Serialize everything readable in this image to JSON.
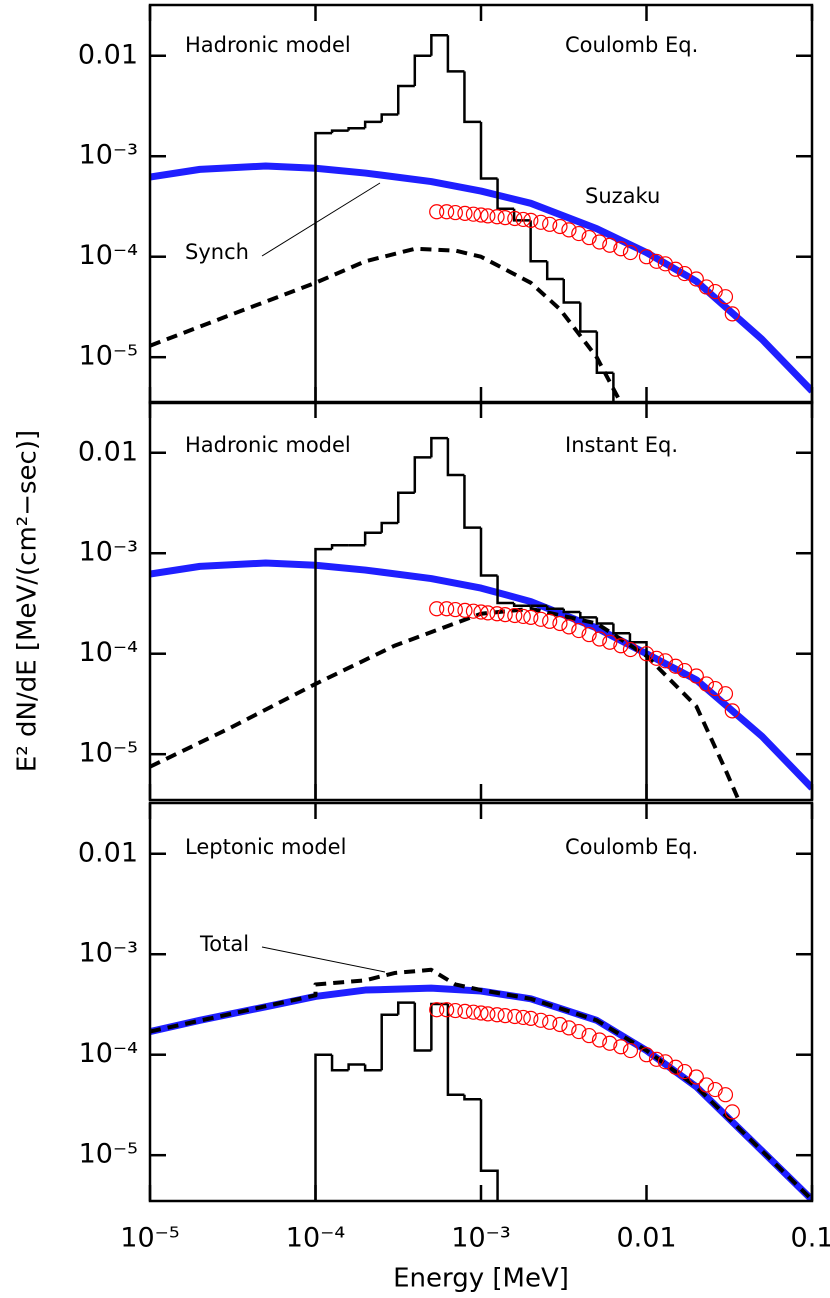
{
  "chart_data": [
    {
      "type": "line",
      "log_x": true,
      "log_y": true,
      "xlim": [
        1e-05,
        0.1
      ],
      "ylim": [
        3.5e-06,
        0.032
      ],
      "xticks": [
        1e-05,
        0.0001,
        0.001,
        0.01,
        0.1
      ],
      "yticks": [
        0.01,
        {
          "value": 0.001,
          "label": "10⁻³"
        },
        {
          "value": 0.0001,
          "label": "10⁻⁴"
        },
        {
          "value": 1e-05,
          "label": "10⁻⁵"
        }
      ],
      "annotations": [
        "Hadronic model",
        "Coulomb Eq.",
        "Suzaku",
        "Synch"
      ],
      "series": [
        {
          "type": "line",
          "color": "#1f1fff",
          "x": [
            1e-05,
            2e-05,
            5e-05,
            0.0001,
            0.0002,
            0.0005,
            0.001,
            0.002,
            0.005,
            0.01,
            0.02,
            0.05,
            0.1
          ],
          "values": [
            0.00062,
            0.00074,
            0.0008,
            0.00076,
            0.00068,
            0.00056,
            0.00045,
            0.00034,
            0.00019,
            0.00011,
            5.7e-05,
            1.5e-05,
            4.6e-06
          ]
        },
        {
          "type": "line",
          "dashed": true,
          "color": "#000000",
          "x": [
            1e-05,
            3e-05,
            0.0001,
            0.0002,
            0.0004,
            0.0007,
            0.001,
            0.002,
            0.003,
            0.005,
            0.007
          ],
          "values": [
            1.3e-05,
            2.6e-05,
            5.5e-05,
            9e-05,
            0.00012,
            0.000115,
            0.0001,
            5.5e-05,
            3e-05,
            1e-05,
            3.5e-06
          ]
        },
        {
          "type": "step",
          "color": "#000000",
          "bins": [
            0.0001,
            0.0001259,
            0.0001585,
            0.0001995,
            0.0002512,
            0.0003162,
            0.0003981,
            0.0005012,
            0.000631,
            0.0007943,
            0.001,
            0.001259,
            0.001585,
            0.001995,
            0.002512,
            0.003162,
            0.003981,
            0.005012,
            0.00631,
            0.007943,
            0.01
          ],
          "values": [
            0.0017,
            0.0018,
            0.0019,
            0.0022,
            0.0026,
            0.005,
            0.01,
            0.016,
            0.007,
            0.0022,
            0.0006,
            0.0003,
            0.00023,
            9e-05,
            6e-05,
            3.5e-05,
            1.8e-05,
            7e-06,
            3e-06,
            2e-06
          ]
        },
        {
          "type": "scatter",
          "color": "#ff0000",
          "x": [
            0.00054,
            0.00062,
            0.0007,
            0.0008,
            0.0009,
            0.001,
            0.0011,
            0.00125,
            0.0014,
            0.0016,
            0.0018,
            0.002,
            0.0023,
            0.0026,
            0.003,
            0.0034,
            0.0039,
            0.0045,
            0.0052,
            0.006,
            0.007,
            0.008,
            0.01,
            0.0115,
            0.013,
            0.015,
            0.017,
            0.02,
            0.023,
            0.026,
            0.03,
            0.033
          ],
          "values": [
            0.00028,
            0.00028,
            0.000275,
            0.00027,
            0.000265,
            0.00026,
            0.000255,
            0.00025,
            0.000245,
            0.00024,
            0.000235,
            0.00023,
            0.00022,
            0.00021,
            0.0002,
            0.000185,
            0.00017,
            0.000155,
            0.00014,
            0.00013,
            0.00012,
            0.00011,
            0.0001,
            9e-05,
            8.5e-05,
            7.5e-05,
            6.8e-05,
            6e-05,
            5e-05,
            4.5e-05,
            4e-05,
            2.7e-05
          ]
        }
      ]
    },
    {
      "type": "line",
      "log_x": true,
      "log_y": true,
      "xlim": [
        1e-05,
        0.1
      ],
      "ylim": [
        3.5e-06,
        0.032
      ],
      "xticks": [
        1e-05,
        0.0001,
        0.001,
        0.01,
        0.1
      ],
      "yticks": [
        0.01,
        {
          "value": 0.001,
          "label": "10⁻³"
        },
        {
          "value": 0.0001,
          "label": "10⁻⁴"
        },
        {
          "value": 1e-05,
          "label": "10⁻⁵"
        }
      ],
      "ylabel": "E² dN/dE [MeV/(cm²−sec)]",
      "annotations": [
        "Hadronic model",
        "Instant Eq."
      ],
      "series": [
        {
          "type": "line",
          "color": "#1f1fff",
          "x": [
            1e-05,
            2e-05,
            5e-05,
            0.0001,
            0.0002,
            0.0005,
            0.001,
            0.002,
            0.005,
            0.01,
            0.02,
            0.05,
            0.1
          ],
          "values": [
            0.00062,
            0.00074,
            0.0008,
            0.00076,
            0.00068,
            0.00056,
            0.00045,
            0.00033,
            0.00018,
            0.0001,
            5.5e-05,
            1.5e-05,
            4.6e-06
          ]
        },
        {
          "type": "line",
          "dashed": true,
          "color": "#000000",
          "x": [
            1e-05,
            3e-05,
            0.0001,
            0.0003,
            0.001,
            0.002,
            0.005,
            0.01,
            0.02,
            0.03,
            0.036
          ],
          "values": [
            7.5e-06,
            1.8e-05,
            5e-05,
            0.00012,
            0.00025,
            0.00028,
            0.0002,
            9.5e-05,
            3e-05,
            7e-06,
            3.5e-06
          ]
        },
        {
          "type": "step",
          "color": "#000000",
          "bins": [
            0.0001,
            0.0001259,
            0.0001585,
            0.0001995,
            0.0002512,
            0.0003162,
            0.0003981,
            0.0005012,
            0.000631,
            0.0007943,
            0.001,
            0.001259,
            0.001585,
            0.001995,
            0.002512,
            0.003162,
            0.003981,
            0.005012,
            0.00631,
            0.007943,
            0.01
          ],
          "values": [
            0.0011,
            0.0012,
            0.0012,
            0.0016,
            0.002,
            0.004,
            0.009,
            0.014,
            0.006,
            0.0018,
            0.0006,
            0.00032,
            0.0003,
            0.0003,
            0.00028,
            0.00026,
            0.00023,
            0.0002,
            0.00016,
            0.00013
          ]
        },
        {
          "type": "scatter",
          "color": "#ff0000",
          "x": [
            0.00054,
            0.00062,
            0.0007,
            0.0008,
            0.0009,
            0.001,
            0.0011,
            0.00125,
            0.0014,
            0.0016,
            0.0018,
            0.002,
            0.0023,
            0.0026,
            0.003,
            0.0034,
            0.0039,
            0.0045,
            0.0052,
            0.006,
            0.007,
            0.008,
            0.01,
            0.0115,
            0.013,
            0.015,
            0.017,
            0.02,
            0.023,
            0.026,
            0.03,
            0.033
          ],
          "values": [
            0.00028,
            0.00028,
            0.000275,
            0.00027,
            0.000265,
            0.00026,
            0.000255,
            0.00025,
            0.000245,
            0.00024,
            0.000235,
            0.00023,
            0.00022,
            0.00021,
            0.0002,
            0.000185,
            0.00017,
            0.000155,
            0.00014,
            0.00013,
            0.00012,
            0.00011,
            0.0001,
            9e-05,
            8.5e-05,
            7.5e-05,
            6.8e-05,
            6e-05,
            5e-05,
            4.5e-05,
            4e-05,
            2.7e-05
          ]
        }
      ]
    },
    {
      "type": "line",
      "log_x": true,
      "log_y": true,
      "xlim": [
        1e-05,
        0.1
      ],
      "ylim": [
        3.5e-06,
        0.032
      ],
      "xticks": [
        {
          "value": 1e-05,
          "label": "10⁻⁵"
        },
        {
          "value": 0.0001,
          "label": "10⁻⁴"
        },
        {
          "value": 0.001,
          "label": "10⁻³"
        },
        0.01,
        0.1
      ],
      "yticks": [
        0.01,
        {
          "value": 0.001,
          "label": "10⁻³"
        },
        {
          "value": 0.0001,
          "label": "10⁻⁴"
        },
        {
          "value": 1e-05,
          "label": "10⁻⁵"
        }
      ],
      "xlabel": "Energy [MeV]",
      "annotations": [
        "Leptonic model",
        "Coulomb Eq.",
        "Total"
      ],
      "series": [
        {
          "type": "line",
          "color": "#1f1fff",
          "x": [
            1e-05,
            2e-05,
            5e-05,
            0.0001,
            0.0002,
            0.0005,
            0.001,
            0.002,
            0.005,
            0.01,
            0.02,
            0.05,
            0.1
          ],
          "values": [
            0.00017,
            0.00022,
            0.0003,
            0.00038,
            0.00044,
            0.00046,
            0.00043,
            0.00036,
            0.00022,
            0.00011,
            4.8e-05,
            1.1e-05,
            3.6e-06
          ]
        },
        {
          "type": "line",
          "dashed": true,
          "color": "#000000",
          "x": [
            1e-05,
            0.0001,
            0.0001,
            0.0002,
            0.0003,
            0.0005,
            0.0007,
            0.001,
            0.002,
            0.005,
            0.01,
            0.02,
            0.05,
            0.1
          ],
          "values": [
            0.00017,
            0.00039,
            0.0005,
            0.00055,
            0.00065,
            0.0007,
            0.0005,
            0.00044,
            0.00036,
            0.00022,
            0.00011,
            4.8e-05,
            1.1e-05,
            3.6e-06
          ]
        },
        {
          "type": "step",
          "color": "#000000",
          "bins": [
            0.0001,
            0.0001259,
            0.0001585,
            0.0001995,
            0.0002512,
            0.0003162,
            0.0003981,
            0.0005012,
            0.000631,
            0.0007943,
            0.001,
            0.001259
          ],
          "values": [
            0.0001,
            7e-05,
            8e-05,
            7e-05,
            0.00025,
            0.00033,
            0.00011,
            0.00032,
            4e-05,
            3.6e-05,
            7e-06
          ]
        },
        {
          "type": "scatter",
          "color": "#ff0000",
          "x": [
            0.00054,
            0.00062,
            0.0007,
            0.0008,
            0.0009,
            0.001,
            0.0011,
            0.00125,
            0.0014,
            0.0016,
            0.0018,
            0.002,
            0.0023,
            0.0026,
            0.003,
            0.0034,
            0.0039,
            0.0045,
            0.0052,
            0.006,
            0.007,
            0.008,
            0.01,
            0.0115,
            0.013,
            0.015,
            0.017,
            0.02,
            0.023,
            0.026,
            0.03,
            0.033
          ],
          "values": [
            0.00028,
            0.00028,
            0.000275,
            0.00027,
            0.000265,
            0.00026,
            0.000255,
            0.00025,
            0.000245,
            0.00024,
            0.000235,
            0.00023,
            0.00022,
            0.00021,
            0.0002,
            0.000185,
            0.00017,
            0.000155,
            0.00014,
            0.00013,
            0.00012,
            0.00011,
            0.0001,
            9e-05,
            8.5e-05,
            7.5e-05,
            6.8e-05,
            6e-05,
            5e-05,
            4.5e-05,
            4e-05,
            2.7e-05
          ]
        }
      ]
    }
  ]
}
